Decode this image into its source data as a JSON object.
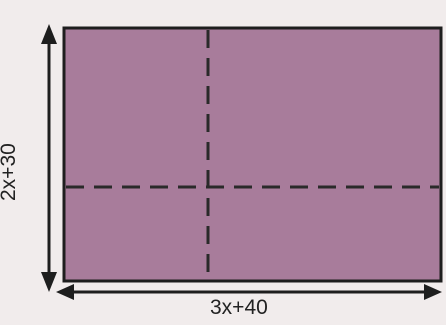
{
  "figure": {
    "height_label": "2x+30",
    "width_label": "3x+40",
    "colors": {
      "rect_fill": "#a87c9b",
      "rect_border": "#1e1e1e",
      "dash_line": "#2a2a2a",
      "arrow": "#1e1e1e"
    }
  }
}
